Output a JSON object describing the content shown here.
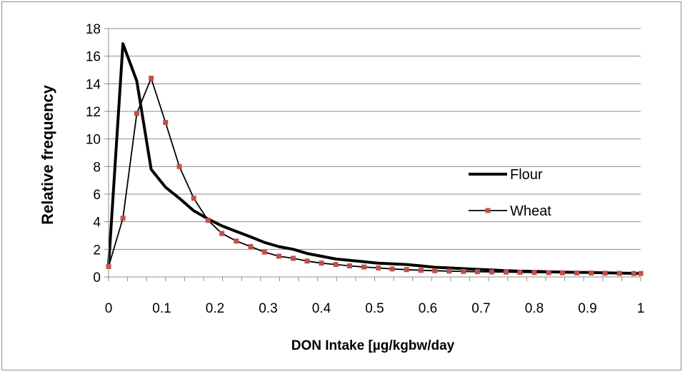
{
  "chart_data": {
    "type": "line",
    "title": "",
    "xlabel": "DON Intake [µg/kgbw/day",
    "ylabel": "Relative frequency",
    "xlim": [
      0,
      1
    ],
    "ylim": [
      0,
      18
    ],
    "xticks": [
      0,
      0.1,
      0.2,
      0.3,
      0.4,
      0.5,
      0.6,
      0.7,
      0.8,
      0.9,
      1
    ],
    "xtick_labels": [
      "0",
      "0.1",
      "0.2",
      "0.3",
      "0.4",
      "0.5",
      "0.6",
      "0.7",
      "0.8",
      "0.9",
      "1"
    ],
    "yticks": [
      0,
      2,
      4,
      6,
      8,
      10,
      12,
      14,
      16,
      18
    ],
    "ytick_labels": [
      "0",
      "2",
      "4",
      "6",
      "8",
      "10",
      "12",
      "14",
      "16",
      "18"
    ],
    "grid": "horizontal",
    "legend_position": "right",
    "series": [
      {
        "name": "Flour",
        "color": "#000000",
        "marker": "none",
        "line_style": "thick",
        "x": [
          0,
          0.027,
          0.053,
          0.08,
          0.107,
          0.133,
          0.16,
          0.187,
          0.213,
          0.24,
          0.267,
          0.293,
          0.32,
          0.347,
          0.373,
          0.4,
          0.427,
          0.453,
          0.48,
          0.507,
          0.533,
          0.56,
          0.587,
          0.613,
          0.64,
          0.667,
          0.693,
          0.72,
          0.747,
          0.773,
          0.8,
          0.827,
          0.853,
          0.88,
          0.907,
          0.933,
          0.96,
          1.0
        ],
        "y": [
          0.8,
          16.9,
          14.2,
          7.8,
          6.5,
          5.7,
          4.8,
          4.2,
          3.7,
          3.3,
          2.9,
          2.5,
          2.2,
          2.0,
          1.7,
          1.5,
          1.3,
          1.2,
          1.1,
          1.0,
          0.95,
          0.9,
          0.8,
          0.7,
          0.65,
          0.6,
          0.55,
          0.5,
          0.45,
          0.42,
          0.4,
          0.38,
          0.35,
          0.33,
          0.32,
          0.3,
          0.28,
          0.25
        ]
      },
      {
        "name": "Wheat",
        "color": "#c0504d",
        "marker": "square",
        "line_style": "thin",
        "x": [
          0,
          0.027,
          0.053,
          0.08,
          0.107,
          0.133,
          0.16,
          0.187,
          0.213,
          0.24,
          0.267,
          0.293,
          0.32,
          0.347,
          0.373,
          0.4,
          0.427,
          0.453,
          0.48,
          0.507,
          0.533,
          0.56,
          0.587,
          0.613,
          0.64,
          0.667,
          0.693,
          0.72,
          0.747,
          0.773,
          0.8,
          0.827,
          0.853,
          0.88,
          0.907,
          0.933,
          0.96,
          0.987,
          1.0
        ],
        "y": [
          0.75,
          4.25,
          11.85,
          14.4,
          11.2,
          8.0,
          5.7,
          4.1,
          3.15,
          2.6,
          2.2,
          1.8,
          1.5,
          1.35,
          1.15,
          1.0,
          0.9,
          0.8,
          0.72,
          0.65,
          0.58,
          0.53,
          0.48,
          0.45,
          0.42,
          0.4,
          0.38,
          0.36,
          0.35,
          0.33,
          0.32,
          0.31,
          0.3,
          0.29,
          0.28,
          0.27,
          0.26,
          0.25,
          0.25
        ]
      }
    ]
  }
}
